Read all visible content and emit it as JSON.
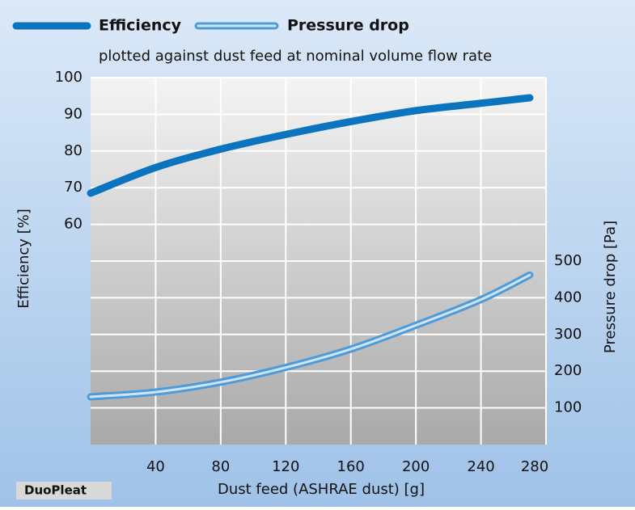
{
  "chart_data": {
    "type": "line",
    "subtitle": "plotted against dust feed at nominal volume flow rate",
    "badge": "DuoPleat",
    "x_label": "Dust feed (ASHRAE dust) [g]",
    "y_label": "Efficiency [%]",
    "y2_label": "Pressure drop [Pa]",
    "x": [
      0,
      40,
      80,
      120,
      160,
      200,
      240,
      270
    ],
    "series": [
      {
        "name": "Efficiency",
        "color": "#0a74bf",
        "values": [
          68.5,
          75.5,
          80.5,
          84.5,
          88,
          91,
          93,
          94.5
        ]
      },
      {
        "name": "Pressure drop",
        "color": "#4f9bd8",
        "axis": "y2",
        "values": [
          130,
          143,
          170,
          210,
          260,
          325,
          395,
          462
        ]
      }
    ],
    "xlim": [
      0,
      280
    ],
    "xticks": [
      40,
      80,
      120,
      160,
      200,
      240,
      280
    ],
    "ylim": [
      0,
      100
    ],
    "yticks": [
      60,
      70,
      80,
      90,
      100
    ],
    "y2lim": [
      0,
      1000
    ],
    "y2ticks": [
      100,
      200,
      300,
      400,
      500
    ],
    "grid": true
  }
}
